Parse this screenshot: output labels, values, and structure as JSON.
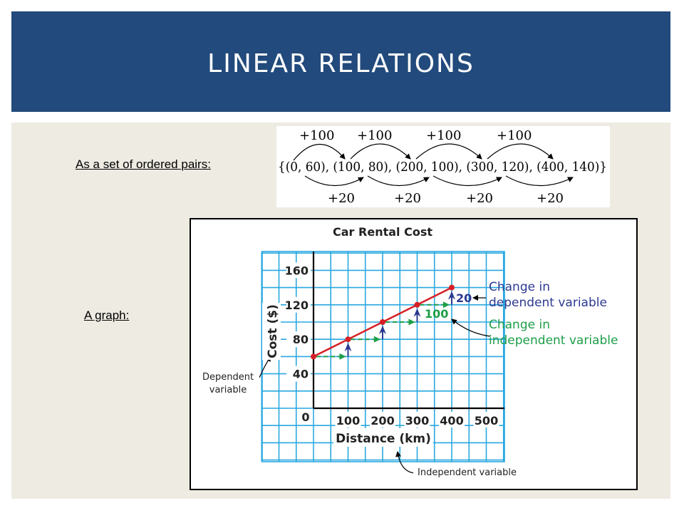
{
  "slide": {
    "title": "LINEAR RELATIONS",
    "ordered_pairs_label": "As a set of ordered pairs:",
    "graph_label": "A graph:"
  },
  "ordered_pairs": {
    "set_text": "{(0, 60), (100, 80), (200, 100), (300, 120), (400, 140)}",
    "x_change": "+100",
    "y_change": "+20"
  },
  "colors": {
    "title_bar": "#224a7c",
    "content_bg": "#eeebe2",
    "grid": "#29a8e0",
    "line": "#d71f26",
    "blue_annotation": "#2b3990",
    "green_annotation": "#1d9e48"
  },
  "chart_data": {
    "type": "line",
    "title": "Car Rental Cost",
    "xlabel": "Distance (km)",
    "ylabel": "Cost ($)",
    "xlim": [
      0,
      550
    ],
    "ylim": [
      0,
      180
    ],
    "x_ticks": [
      100,
      200,
      300,
      400,
      500
    ],
    "y_ticks": [
      40,
      80,
      120,
      160
    ],
    "origin_label": "0",
    "grid": true,
    "series": [
      {
        "points": [
          [
            0,
            60
          ],
          [
            100,
            80
          ],
          [
            200,
            100
          ],
          [
            300,
            120
          ],
          [
            400,
            140
          ]
        ]
      }
    ],
    "annotations": {
      "dependent_change_value": "20",
      "independent_change_value": "100",
      "dependent_change_line1": "Change in",
      "dependent_change_line2": "dependent variable",
      "independent_change_line1": "Change in",
      "independent_change_line2": "independent variable",
      "dependent_variable_line1": "Dependent",
      "dependent_variable_line2": "variable",
      "independent_variable": "Independent variable"
    }
  }
}
